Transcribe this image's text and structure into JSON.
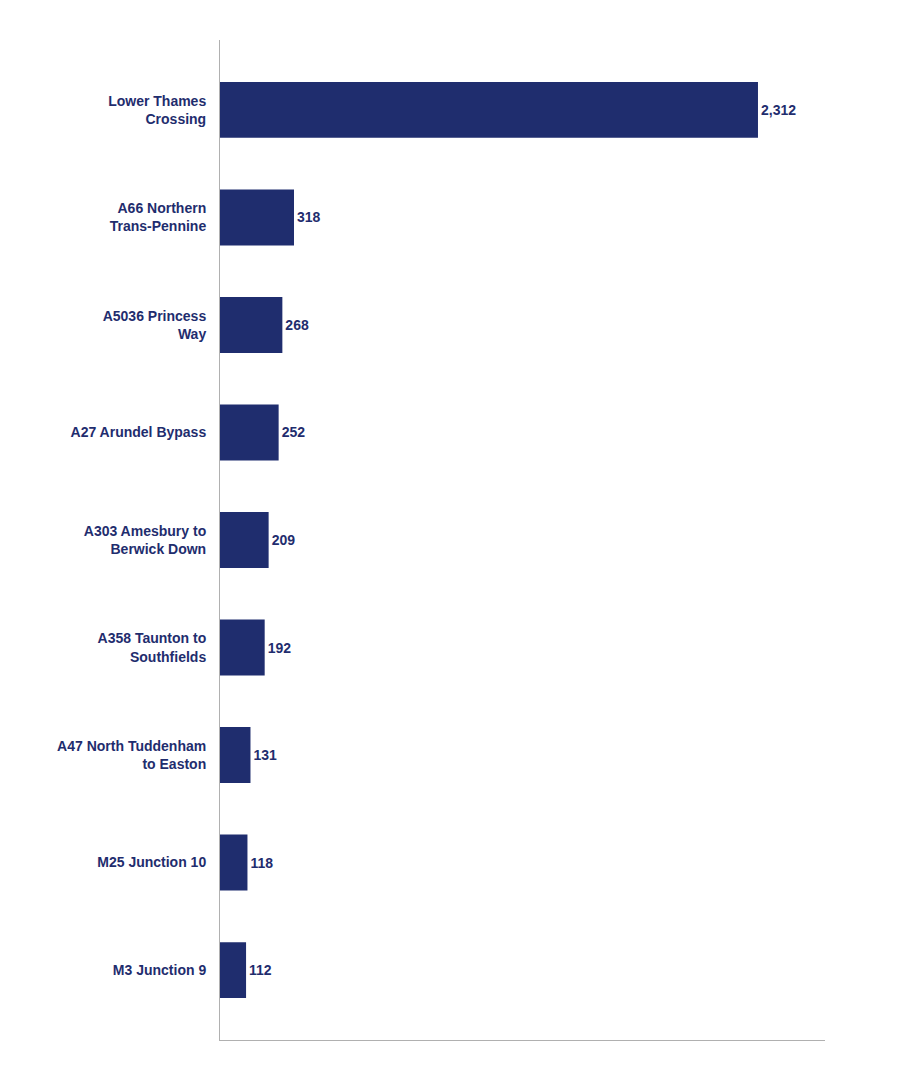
{
  "chart_data": {
    "type": "bar",
    "orientation": "horizontal",
    "categories": [
      "M3 Junction 9",
      "M25 Junction 10",
      "A47 North Tuddenham\nto Easton",
      "A358 Taunton to\nSouthfields",
      "A303 Amesbury to\nBerwick Down",
      "A27 Arundel Bypass",
      "A5036 Princess\nWay",
      "A66 Northern\nTrans-Pennine",
      "Lower Thames\nCrossing"
    ],
    "values": [
      112,
      118,
      131,
      192,
      209,
      252,
      268,
      318,
      2312
    ],
    "value_labels": [
      "112",
      "118",
      "131",
      "192",
      "209",
      "252",
      "268",
      "318",
      "2,312"
    ],
    "data_labels": true,
    "color": "#1f2d6e",
    "xlim": [
      0,
      2600
    ],
    "tick_labels": "y",
    "grid": false
  }
}
